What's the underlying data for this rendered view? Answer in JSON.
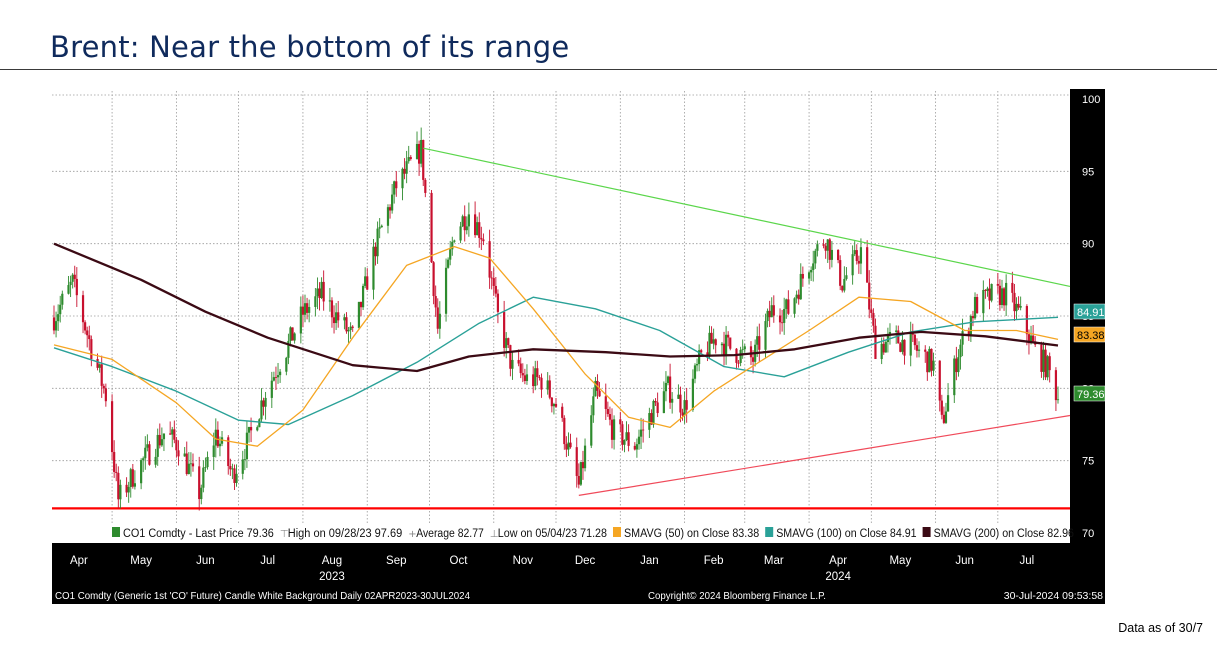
{
  "slide": {
    "title": "Brent: Near the bottom of its range",
    "footnote": "Data as of 30/7"
  },
  "colors": {
    "title": "#0f2a5c",
    "up_candle": "#2e8b2e",
    "down_candle": "#c8102e",
    "sma50": "#f5a623",
    "sma100": "#2aa198",
    "sma200": "#3b0a14",
    "trend_upper": "#5bd64b",
    "trend_lower": "#f04a5a",
    "support": "#ff0000"
  },
  "chart_data": {
    "type": "line",
    "subtype": "candlestick",
    "ylim": [
      70,
      100
    ],
    "y_ticks": [
      "100",
      "95",
      "90",
      "85",
      "80",
      "75",
      "70"
    ],
    "grid": true,
    "x_month_labels": [
      "Apr",
      "May",
      "Jun",
      "Jul",
      "Aug",
      "Sep",
      "Oct",
      "Nov",
      "Dec",
      "Jan",
      "Feb",
      "Mar",
      "Apr",
      "May",
      "Jun",
      "Jul"
    ],
    "x_year_labels": [
      {
        "text": "2023",
        "under": "Aug"
      },
      {
        "text": "2024",
        "under": "Apr"
      }
    ],
    "legend": [
      {
        "swatch": "#2e8b2e",
        "text": "CO1 Comdty - Last Price 79.36"
      },
      {
        "swatch": "none",
        "text": "High on 09/28/23 97.69"
      },
      {
        "swatch": "none",
        "text": "Average 82.77"
      },
      {
        "swatch": "none",
        "text": "Low on 05/04/23 71.28"
      },
      {
        "swatch": "#f5a623",
        "text": "SMAVG (50)  on Close 83.38"
      },
      {
        "swatch": "#2aa198",
        "text": "SMAVG (100)  on Close 84.91"
      },
      {
        "swatch": "#3b0a14",
        "text": "SMAVG (200)  on Close 82.96"
      }
    ],
    "last_price_labels": [
      {
        "text": "84.91",
        "value": 84.91,
        "color": "#2aa198"
      },
      {
        "text": "83.38",
        "value": 83.38,
        "color": "#f5a623"
      },
      {
        "text": "79.36",
        "value": 79.36,
        "color": "#2e8b2e"
      }
    ],
    "price_points": [
      {
        "x": "2023-04-03",
        "y": 84.9
      },
      {
        "x": "2023-04-12",
        "y": 87.3
      },
      {
        "x": "2023-04-20",
        "y": 83.3
      },
      {
        "x": "2023-04-28",
        "y": 79.5
      },
      {
        "x": "2023-05-04",
        "y": 72.3
      },
      {
        "x": "2023-05-12",
        "y": 74.2
      },
      {
        "x": "2023-05-19",
        "y": 75.6
      },
      {
        "x": "2023-05-26",
        "y": 76.9
      },
      {
        "x": "2023-06-02",
        "y": 76.1
      },
      {
        "x": "2023-06-12",
        "y": 72.8
      },
      {
        "x": "2023-06-20",
        "y": 76.9
      },
      {
        "x": "2023-06-28",
        "y": 74.0
      },
      {
        "x": "2023-07-06",
        "y": 76.5
      },
      {
        "x": "2023-07-14",
        "y": 79.8
      },
      {
        "x": "2023-07-24",
        "y": 82.7
      },
      {
        "x": "2023-08-01",
        "y": 85.2
      },
      {
        "x": "2023-08-10",
        "y": 86.5
      },
      {
        "x": "2023-08-18",
        "y": 84.8
      },
      {
        "x": "2023-08-25",
        "y": 83.5
      },
      {
        "x": "2023-09-05",
        "y": 89.8
      },
      {
        "x": "2023-09-15",
        "y": 94.0
      },
      {
        "x": "2023-09-27",
        "y": 96.5
      },
      {
        "x": "2023-10-05",
        "y": 84.1
      },
      {
        "x": "2023-10-13",
        "y": 90.9
      },
      {
        "x": "2023-10-20",
        "y": 92.2
      },
      {
        "x": "2023-10-27",
        "y": 90.5
      },
      {
        "x": "2023-11-03",
        "y": 84.9
      },
      {
        "x": "2023-11-10",
        "y": 81.4
      },
      {
        "x": "2023-11-17",
        "y": 80.6
      },
      {
        "x": "2023-11-24",
        "y": 80.6
      },
      {
        "x": "2023-12-01",
        "y": 78.9
      },
      {
        "x": "2023-12-12",
        "y": 73.2
      },
      {
        "x": "2023-12-20",
        "y": 79.7
      },
      {
        "x": "2023-12-29",
        "y": 77.0
      },
      {
        "x": "2024-01-08",
        "y": 76.1
      },
      {
        "x": "2024-01-16",
        "y": 78.3
      },
      {
        "x": "2024-01-24",
        "y": 80.0
      },
      {
        "x": "2024-02-01",
        "y": 78.7
      },
      {
        "x": "2024-02-09",
        "y": 82.2
      },
      {
        "x": "2024-02-16",
        "y": 83.5
      },
      {
        "x": "2024-02-26",
        "y": 82.5
      },
      {
        "x": "2024-03-05",
        "y": 82.0
      },
      {
        "x": "2024-03-14",
        "y": 85.4
      },
      {
        "x": "2024-03-22",
        "y": 85.4
      },
      {
        "x": "2024-04-02",
        "y": 89.0
      },
      {
        "x": "2024-04-09",
        "y": 90.4
      },
      {
        "x": "2024-04-17",
        "y": 87.3
      },
      {
        "x": "2024-04-26",
        "y": 89.5
      },
      {
        "x": "2024-05-03",
        "y": 82.9
      },
      {
        "x": "2024-05-13",
        "y": 83.4
      },
      {
        "x": "2024-05-21",
        "y": 82.9
      },
      {
        "x": "2024-05-31",
        "y": 81.6
      },
      {
        "x": "2024-06-04",
        "y": 77.5
      },
      {
        "x": "2024-06-12",
        "y": 82.6
      },
      {
        "x": "2024-06-20",
        "y": 85.7
      },
      {
        "x": "2024-06-28",
        "y": 86.4
      },
      {
        "x": "2024-07-05",
        "y": 86.5
      },
      {
        "x": "2024-07-12",
        "y": 85.0
      },
      {
        "x": "2024-07-19",
        "y": 82.6
      },
      {
        "x": "2024-07-25",
        "y": 81.4
      },
      {
        "x": "2024-07-30",
        "y": 79.4
      }
    ],
    "sma50": [
      {
        "x": "2023-04-03",
        "y": 83.0
      },
      {
        "x": "2023-05-01",
        "y": 82.0
      },
      {
        "x": "2023-06-01",
        "y": 79.0
      },
      {
        "x": "2023-06-20",
        "y": 76.5
      },
      {
        "x": "2023-07-10",
        "y": 76.0
      },
      {
        "x": "2023-08-01",
        "y": 78.5
      },
      {
        "x": "2023-08-25",
        "y": 83.5
      },
      {
        "x": "2023-09-20",
        "y": 88.5
      },
      {
        "x": "2023-10-13",
        "y": 89.8
      },
      {
        "x": "2023-10-30",
        "y": 89.0
      },
      {
        "x": "2023-11-20",
        "y": 85.5
      },
      {
        "x": "2023-12-15",
        "y": 81.0
      },
      {
        "x": "2024-01-05",
        "y": 78.0
      },
      {
        "x": "2024-01-25",
        "y": 77.3
      },
      {
        "x": "2024-02-15",
        "y": 79.8
      },
      {
        "x": "2024-03-10",
        "y": 82.0
      },
      {
        "x": "2024-04-01",
        "y": 84.0
      },
      {
        "x": "2024-04-25",
        "y": 86.3
      },
      {
        "x": "2024-05-20",
        "y": 86.0
      },
      {
        "x": "2024-06-15",
        "y": 84.0
      },
      {
        "x": "2024-07-10",
        "y": 84.0
      },
      {
        "x": "2024-07-30",
        "y": 83.38
      }
    ],
    "sma100": [
      {
        "x": "2023-04-03",
        "y": 82.8
      },
      {
        "x": "2023-05-01",
        "y": 81.5
      },
      {
        "x": "2023-06-01",
        "y": 79.8
      },
      {
        "x": "2023-07-01",
        "y": 77.8
      },
      {
        "x": "2023-07-25",
        "y": 77.5
      },
      {
        "x": "2023-08-25",
        "y": 79.5
      },
      {
        "x": "2023-09-25",
        "y": 81.8
      },
      {
        "x": "2023-10-25",
        "y": 84.5
      },
      {
        "x": "2023-11-20",
        "y": 86.3
      },
      {
        "x": "2023-12-20",
        "y": 85.5
      },
      {
        "x": "2024-01-20",
        "y": 84.0
      },
      {
        "x": "2024-02-20",
        "y": 81.5
      },
      {
        "x": "2024-03-20",
        "y": 80.8
      },
      {
        "x": "2024-04-20",
        "y": 82.5
      },
      {
        "x": "2024-05-20",
        "y": 83.9
      },
      {
        "x": "2024-06-20",
        "y": 84.6
      },
      {
        "x": "2024-07-30",
        "y": 84.91
      }
    ],
    "sma200": [
      {
        "x": "2023-04-03",
        "y": 90.0
      },
      {
        "x": "2023-05-15",
        "y": 87.5
      },
      {
        "x": "2023-06-15",
        "y": 85.3
      },
      {
        "x": "2023-07-15",
        "y": 83.5
      },
      {
        "x": "2023-08-25",
        "y": 81.6
      },
      {
        "x": "2023-09-25",
        "y": 81.2
      },
      {
        "x": "2023-10-20",
        "y": 82.2
      },
      {
        "x": "2023-11-20",
        "y": 82.7
      },
      {
        "x": "2023-12-25",
        "y": 82.5
      },
      {
        "x": "2024-01-25",
        "y": 82.2
      },
      {
        "x": "2024-02-25",
        "y": 82.3
      },
      {
        "x": "2024-03-25",
        "y": 82.7
      },
      {
        "x": "2024-04-25",
        "y": 83.5
      },
      {
        "x": "2024-05-25",
        "y": 83.9
      },
      {
        "x": "2024-06-25",
        "y": 83.6
      },
      {
        "x": "2024-07-30",
        "y": 82.96
      }
    ],
    "trendlines": [
      {
        "name": "upper",
        "color": "#5bd64b",
        "from": {
          "x": "2023-09-28",
          "y": 96.6
        },
        "to": {
          "x": "2024-07-30",
          "y": 87.0
        }
      },
      {
        "name": "lower",
        "color": "#f04a5a",
        "from": {
          "x": "2023-12-12",
          "y": 72.6
        },
        "to": {
          "x": "2024-07-30",
          "y": 78.1
        }
      },
      {
        "name": "support",
        "color": "#ff0000",
        "from": {
          "x": "2023-04-03",
          "y": 71.7
        },
        "to": {
          "x": "2024-07-30",
          "y": 71.7
        }
      }
    ]
  },
  "footer": {
    "left": "CO1 Comdty (Generic 1st 'CO' Future) Candle White Background  Daily 02APR2023-30JUL2024",
    "center": "Copyright© 2024 Bloomberg Finance L.P.",
    "right": "30-Jul-2024 09:53:58"
  }
}
